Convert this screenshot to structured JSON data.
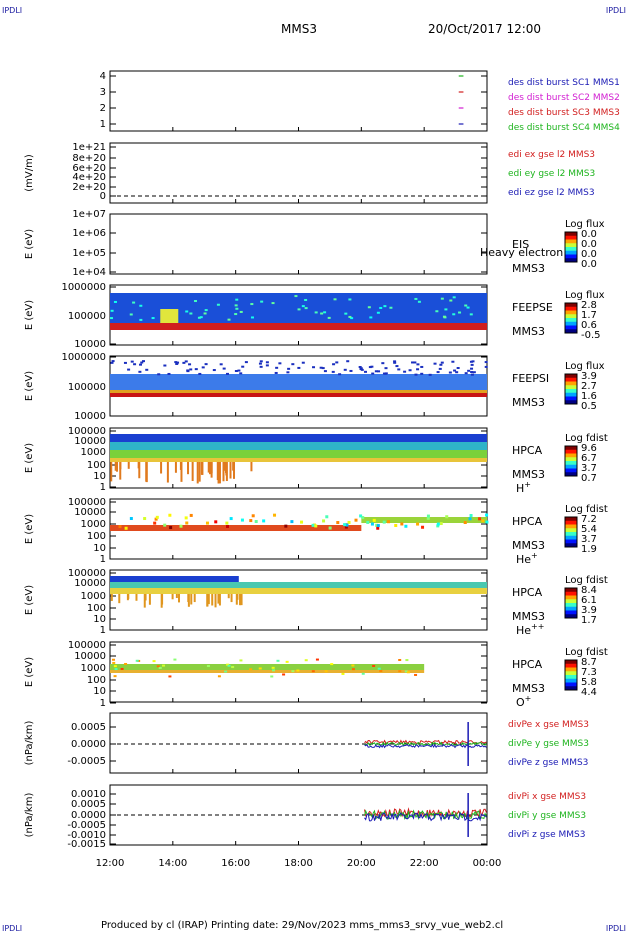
{
  "corner_labels": [
    "IPDLI",
    "IPDLI",
    "IPDLI",
    "IPDLI"
  ],
  "header": {
    "title": "MMS3",
    "datetime": "20/Oct/2017 12:00"
  },
  "footer": {
    "text": "Produced by cl (IRAP)   Printing date: 29/Nov/2023   mms_mms3_srvy_vue_web2.cl"
  },
  "colors": {
    "mms1": "#1a1ab4",
    "mms2": "#d21ed2",
    "mms3": "#d21e1e",
    "mms4": "#1eb41e",
    "text_blue": "#0000aa"
  },
  "chart_data": {
    "type": "stacked-panels",
    "xaxis": {
      "ticks": [
        "12:00",
        "14:00",
        "16:00",
        "18:00",
        "20:00",
        "22:00",
        "00:00"
      ],
      "range_hours": [
        0,
        12
      ]
    },
    "panels": [
      {
        "id": "des-burst",
        "type": "line",
        "ylabel": "",
        "yticks": [
          "4",
          "3",
          "2",
          "1"
        ],
        "ylim": [
          0.5,
          4.5
        ],
        "legend": [
          {
            "text": "des dist burst SC1 MMS1",
            "color": "#1a1ab4"
          },
          {
            "text": "des dist burst SC2 MMS2",
            "color": "#d21ed2"
          },
          {
            "text": "des dist burst SC3 MMS3",
            "color": "#d21e1e"
          },
          {
            "text": "des dist burst SC4 MMS4",
            "color": "#1eb41e"
          }
        ],
        "series": [
          {
            "name": "des dist burst SC4 MMS4",
            "y": 4,
            "x": [
              11.1,
              11.25
            ],
            "color": "#1eb41e"
          },
          {
            "name": "des dist burst SC3 MMS3",
            "y": 3,
            "x": [
              11.1,
              11.25
            ],
            "color": "#d21e1e"
          },
          {
            "name": "des dist burst SC2 MMS2",
            "y": 2,
            "x": [
              11.1,
              11.25
            ],
            "color": "#d21ed2"
          },
          {
            "name": "des dist burst SC1 MMS1",
            "y": 1,
            "x": [
              11.1,
              11.25
            ],
            "color": "#1a1ab4"
          }
        ]
      },
      {
        "id": "edi",
        "type": "line",
        "ylabel": "(mV/m)",
        "yticks": [
          "1e+21",
          "8e+20",
          "6e+20",
          "4e+20",
          "2e+20",
          "0"
        ],
        "ylim": [
          0,
          1e+21
        ],
        "legend": [
          {
            "text": "edi ex gse l2 MMS3",
            "color": "#d21e1e"
          },
          {
            "text": "edi ey gse l2 MMS3",
            "color": "#1eb41e"
          },
          {
            "text": "edi ez gse l2 MMS3",
            "color": "#1a1ab4"
          }
        ]
      },
      {
        "id": "eis",
        "type": "heatmap",
        "ylabel": "E (eV)",
        "yticks": [
          "1e+07",
          "1e+06",
          "1e+05",
          "1e+04"
        ],
        "side_labels": [
          "EIS",
          "MMS3"
        ],
        "overlay_text": "Heavy electron to",
        "colorbar": {
          "title": "Log flux",
          "ticks": [
            "0.0",
            "0.0",
            "0.0",
            "0.0"
          ]
        }
      },
      {
        "id": "feepse",
        "type": "heatmap",
        "ylabel": "E (eV)",
        "yticks": [
          "1000000",
          "100000",
          "10000"
        ],
        "side_labels": [
          "FEEPSE",
          "MMS3"
        ],
        "colorbar": {
          "title": "Log flux",
          "ticks": [
            "2.8",
            "1.7",
            "0.6",
            "-0.5"
          ]
        }
      },
      {
        "id": "feepsi",
        "type": "heatmap",
        "ylabel": "E (eV)",
        "yticks": [
          "1000000",
          "100000",
          "10000"
        ],
        "side_labels": [
          "FEEPSI",
          "MMS3"
        ],
        "colorbar": {
          "title": "Log flux",
          "ticks": [
            "3.9",
            "2.7",
            "1.6",
            "0.5"
          ]
        }
      },
      {
        "id": "hpca-h",
        "type": "heatmap",
        "ylabel": "E (eV)",
        "yticks": [
          "100000",
          "10000",
          "1000",
          "100",
          "10",
          "1"
        ],
        "side_labels": [
          "HPCA",
          "MMS3"
        ],
        "species": "H",
        "charge": "+",
        "colorbar": {
          "title": "Log fdist",
          "ticks": [
            "9.6",
            "6.7",
            "3.7",
            "0.7"
          ]
        }
      },
      {
        "id": "hpca-he",
        "type": "heatmap",
        "ylabel": "E (eV)",
        "yticks": [
          "100000",
          "10000",
          "1000",
          "100",
          "10",
          "1"
        ],
        "side_labels": [
          "HPCA",
          "MMS3"
        ],
        "species": "He",
        "charge": "+",
        "colorbar": {
          "title": "Log fdist",
          "ticks": [
            "7.2",
            "5.4",
            "3.7",
            "1.9"
          ]
        }
      },
      {
        "id": "hpca-he2",
        "type": "heatmap",
        "ylabel": "E (eV)",
        "yticks": [
          "100000",
          "10000",
          "1000",
          "100",
          "10",
          "1"
        ],
        "side_labels": [
          "HPCA",
          "MMS3"
        ],
        "species": "He",
        "charge": "++",
        "colorbar": {
          "title": "Log fdist",
          "ticks": [
            "8.4",
            "6.1",
            "3.9",
            "1.7"
          ]
        }
      },
      {
        "id": "hpca-o",
        "type": "heatmap",
        "ylabel": "E (eV)",
        "yticks": [
          "100000",
          "10000",
          "1000",
          "100",
          "10",
          "1"
        ],
        "side_labels": [
          "HPCA",
          "MMS3"
        ],
        "species": "O",
        "charge": "+",
        "colorbar": {
          "title": "Log fdist",
          "ticks": [
            "8.7",
            "7.3",
            "5.8",
            "4.4"
          ]
        }
      },
      {
        "id": "divpe",
        "type": "line",
        "ylabel": "(nPa/km)",
        "yticks": [
          "0.0005",
          "0.0000",
          "-0.0005"
        ],
        "ylim": [
          -0.0009,
          0.0009
        ],
        "legend": [
          {
            "text": "divPe x gse MMS3",
            "color": "#d21e1e"
          },
          {
            "text": "divPe y gse MMS3",
            "color": "#1eb41e"
          },
          {
            "text": "divPe z gse MMS3",
            "color": "#1a1ab4"
          }
        ]
      },
      {
        "id": "divpi",
        "type": "line",
        "ylabel": "(nPa/km)",
        "yticks": [
          "0.0010",
          "0.0005",
          "0.0000",
          "-0.0005",
          "-0.0010",
          "-0.0015"
        ],
        "ylim": [
          -0.0017,
          0.0012
        ],
        "legend": [
          {
            "text": "divPi x gse MMS3",
            "color": "#d21e1e"
          },
          {
            "text": "divPi y gse MMS3",
            "color": "#1eb41e"
          },
          {
            "text": "divPi z gse MMS3",
            "color": "#1a1ab4"
          }
        ]
      }
    ]
  }
}
